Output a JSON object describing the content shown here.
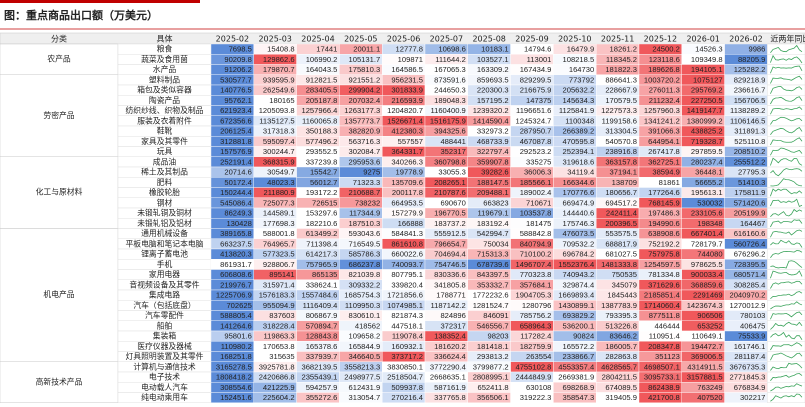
{
  "title": "图：重点商品出口额（万美元）",
  "table": {
    "header": [
      "分类",
      "具体",
      "2025-02",
      "2025-03",
      "2025-04",
      "2025-05",
      "2025-06",
      "2025-07",
      "2025-08",
      "2025-09",
      "2025-10",
      "2025-11",
      "2025-12",
      "2026-01",
      "2026-02",
      "近两年同比"
    ],
    "color_scale": {
      "low": "#5b8bd8",
      "mid": "#ffffff",
      "high": "#f0585b",
      "sparkline": "#3aa35a"
    },
    "groups": [
      {
        "name": "农产品",
        "rows": [
          {
            "name": "粮食",
            "values": [
              7698.5,
              15408.8,
              17441,
              20011.1,
              12777.8,
              10698.6,
              10183.1,
              14794.6,
              16479.9,
              18261.2,
              24500.2,
              14526.3,
              9986
            ]
          },
          {
            "name": "蔬菜及食用菌",
            "values": [
              90209.8,
              129862.6,
              106990.2,
              105131.7,
              109871,
              111644.2,
              103527.1,
              113001,
              108218.5,
              118345.2,
              123118.6,
              109349.8,
              88205.9
            ]
          },
          {
            "name": "水产品",
            "values": [
              91206.2,
              179870.7,
              164043.5,
              175810.3,
              164586.5,
              167065.3,
              163309.2,
              167434.9,
              164730,
              181822.3,
              189626.8,
              194105.1,
              125282.2
            ]
          }
        ]
      },
      {
        "name": "劳密产品",
        "rows": [
          {
            "name": "塑料制品",
            "values": [
              530577.7,
              939595.9,
              912821.5,
              921551.2,
              956231.5,
              873591.6,
              859693.5,
              829299.5,
              773792,
              886641.3,
              1003720.2,
              1075127,
              829218.9
            ]
          },
          {
            "name": "箱包及类似容器",
            "values": [
              140776.5,
              262549.6,
              283405.5,
              299904.2,
              301833.9,
              244650.3,
              220300.3,
              216675.9,
              205632.2,
              228667.9,
              276011.3,
              295769.2,
              236616.7
            ]
          },
          {
            "name": "陶瓷产品",
            "values": [
              95762.1,
              180165,
              205187.8,
              207032.4,
              216593.9,
              189048.3,
              157195.2,
              147375,
              145634.3,
              170579.5,
              211232.4,
              227250.5,
              156706.5
            ]
          },
          {
            "name": "纺织纱线、织物及制品",
            "values": [
              621923.4,
              1205093.8,
              1257966.4,
              1263177.3,
              1204820.7,
              1160400.9,
              1239320.2,
              1196651.6,
              1125841.9,
              1227573.3,
              1257960.3,
              1419147.7,
              1138289.2
            ]
          },
          {
            "name": "服装及衣着附件",
            "values": [
              672356.6,
              1135127.5,
              1160065.8,
              1357773.7,
              1526671.4,
              1516175.9,
              1414590.4,
              1245324.7,
              1100348,
              1199158.6,
              1341241.2,
              1380999.2,
              1106146.5
            ]
          },
          {
            "name": "鞋靴",
            "values": [
              206125.4,
              317318.3,
              350188.3,
              382820.9,
              412380.3,
              394325.6,
              332973.2,
              287950.7,
              266389.2,
              313304.5,
              391066.3,
              438825.2,
              311891.3
            ]
          },
          {
            "name": "家具及其零件",
            "values": [
              312881.8,
              595097.4,
              577496.2,
              563716.3,
              557557,
              488441,
              468733.9,
              467087.8,
              470595.8,
              540570.8,
              644954.1,
              719328.7,
              525110.8
            ]
          },
          {
            "name": "玩具",
            "values": [
              157576.9,
              300244.7,
              293552.5,
              302084.7,
              364331.7,
              352317,
              322797.4,
              292523.2,
              252394.1,
              238916.8,
              267417.8,
              297859.5,
              208510.2
            ]
          }
        ]
      },
      {
        "name": "化工与原材料",
        "rows": [
          {
            "name": "成品油",
            "values": [
              252191.4,
              368315.9,
              337239.8,
              295953.6,
              340266.3,
              360798.8,
              359907.8,
              335275,
              319618.6,
              363157.8,
              362725.1,
              280237.4,
              255512.2
            ]
          },
          {
            "name": "稀土及其制品",
            "values": [
              20714.6,
              30549.7,
              15542.7,
              9275,
              19778.9,
              33055.3,
              39282.6,
              36006.3,
              34119.4,
              37194.1,
              38594.9,
              36448.1,
              27795.3
            ]
          },
          {
            "name": "肥料",
            "values": [
              50172.4,
              48023.3,
              56012.7,
              71323.3,
              135709.6,
              208265.1,
              188147.5,
              185566.1,
              166344.6,
              138709,
              81861,
              56655.2,
              51410.3
            ]
          },
          {
            "name": "橡胶轮胎",
            "values": [
              150244.4,
              211880.9,
              193172.2,
              210688.7,
              200117.8,
              210787.6,
              209488.1,
              189002.4,
              170776.6,
              180656.7,
              177264.6,
              195613.1,
              175811.9
            ]
          },
          {
            "name": "钢材",
            "values": [
              545086.4,
              725077.3,
              726515,
              738232,
              664953.5,
              690670,
              663823,
              710671,
              669474.9,
              694517.2,
              768145.9,
              530032,
              571420.6
            ]
          },
          {
            "name": "未锻轧铜及铜材",
            "values": [
              86249.3,
              144589.1,
              153297.6,
              117344.9,
              157279.9,
              196770.5,
              119679.1,
              103537.8,
              144440.6,
              242411.4,
              197486.3,
              233105.6,
              205199.9
            ]
          },
          {
            "name": "未锻轧铝及铝材",
            "values": [
              130428,
              177698.3,
              182210.6,
              187510.3,
              166888,
              183737.2,
              183192.4,
              181475,
              175746.3,
              200396.5,
              194990.6,
              198348,
              164467
            ]
          }
        ]
      },
      {
        "name": "机电产品",
        "rows": [
          {
            "name": "通用机械设备",
            "values": [
              389165.8,
              588001.8,
              613499.2,
              593043.6,
              584841.3,
              555912.5,
              542994.7,
              588842.8,
              476073.5,
              553575.5,
              638908.6,
              667401.4,
              616160.6
            ]
          },
          {
            "name": "平板电脑和笔记本电脑",
            "values": [
              663237.5,
              764965.7,
              711398.4,
              716549.5,
              861610.8,
              796654.7,
              750034,
              840794.9,
              709532.2,
              688817.9,
              752192.2,
              728179.7,
              560726.4
            ]
          },
          {
            "name": "锂离子蓄电池",
            "values": [
              413820.3,
              577323.5,
              614217.3,
              585786.3,
              660022.6,
              704694.4,
              715313.3,
              710100.2,
              696784.2,
              681027.5,
              757975.8,
              744080,
              676296.2
            ]
          },
          {
            "name": "手机",
            "values": [
              861931.7,
              928806.7,
              757965.9,
              686237.8,
              740093.7,
              754746.5,
              678739.6,
              1496707.4,
              1552376.4,
              1481333.8,
              1254597.5,
              978625.5,
              728395.5
            ]
          },
          {
            "name": "家用电器",
            "values": [
              606808.6,
              895141,
              865135,
              821039.8,
              807795.1,
              830336.6,
              843397.5,
              770323.8,
              740943.2,
              750535,
              781334.8,
              900033.4,
              680571.4
            ]
          },
          {
            "name": "音视频设备及其零件",
            "values": [
              219976.7,
              315971.4,
              338624.1,
              309332.2,
              339820.4,
              341805.8,
              353332.7,
              357684.1,
              329874.4,
              345079,
              371629.6,
              368859.6,
              308285.4
            ]
          },
          {
            "name": "集成电路",
            "values": [
              1225706.9,
              1576183.3,
              1557484.6,
              1685754.3,
              1721856.6,
              1788771,
              1772232.6,
              1904705.3,
              1669893.4,
              1845443,
              2185851.4,
              2291469,
              2040970.2
            ]
          },
          {
            "name": "汽车（包括底盘）",
            "values": [
              702625,
              955094.9,
              1116409.4,
              1109950.3,
              1074985.1,
              1187142.2,
              1281524.7,
              1280796,
              1430899.1,
              1387783.9,
              1714060.4,
              1423674.3,
              1270012.9
            ]
          },
          {
            "name": "汽车零配件",
            "values": [
              588805.4,
              837603,
              806867.9,
              830610.1,
              821874.3,
              824896,
              846091,
              785756.2,
              693829.2,
              793395.3,
              877511.8,
              906506,
              780103
            ]
          },
          {
            "name": "船舶",
            "values": [
              141264.6,
              318228.4,
              570894.7,
              418562,
              447518.1,
              372317,
              546556.7,
              658964.3,
              536200.1,
              513226.8,
              446444,
              653252,
              406475
            ]
          },
          {
            "name": "集装箱",
            "values": [
              95801.6,
              119863.3,
              128843.8,
              109658.2,
              119078.4,
              138352.4,
              98203,
              117282.4,
              90824,
              83646.2,
              110951.4,
              110649.1,
              75533.9
            ]
          },
          {
            "name": "医疗仪器及器械",
            "values": [
              110980.2,
              170653.8,
              165378.6,
              165844.9,
              160932.1,
              181620.2,
              181418.1,
              182759.9,
              165572.2,
              186005.7,
              208347.8,
              194472.7,
              161746.1
            ]
          },
          {
            "name": "灯具照明装置及其零件",
            "values": [
              168251.8,
              315635,
              337939.7,
              346640.5,
              373717.2,
              336624.4,
              293813.2,
              263554,
              233866.7,
              282863.8,
              351123,
              369006.5,
              281187.4
            ]
          }
        ]
      },
      {
        "name": "高新技术产品",
        "rows": [
          {
            "name": "计算机与通信技术",
            "values": [
              3165278.5,
              3925781.8,
              3682139.5,
              3558213.3,
              3830850.1,
              3772290.4,
              3799877.2,
              4755102.8,
              4553357.4,
              4628565.7,
              4698507.1,
              4314911.5,
              3676735.3
            ]
          },
          {
            "name": "电子技术",
            "values": [
              1808418.2,
              2420686.8,
              2355439.1,
              2498977.5,
              2518504.7,
              2668635.1,
              2808995.1,
              2444849.9,
              2669381.9,
              2804211.5,
              3095733.1,
              3157881.5,
              2771845.3
            ]
          },
          {
            "name": "电动载人汽车",
            "values": [
              308554.6,
              421225.9,
              594257.9,
              612431.9,
              509937.8,
              587161.9,
              652411.8,
              630108,
              698268.9,
              674089.5,
              862438.9,
              763249,
              676834.9
            ]
          },
          {
            "name": "纯电动乘用车",
            "values": [
              152451.6,
              225604.2,
              355272.6,
              313054.7,
              270216.4,
              337765.8,
              356506.1,
              319222.3,
              358547.3,
              319405.9,
              421700.8,
              407520,
              302217
            ]
          }
        ]
      }
    ]
  }
}
